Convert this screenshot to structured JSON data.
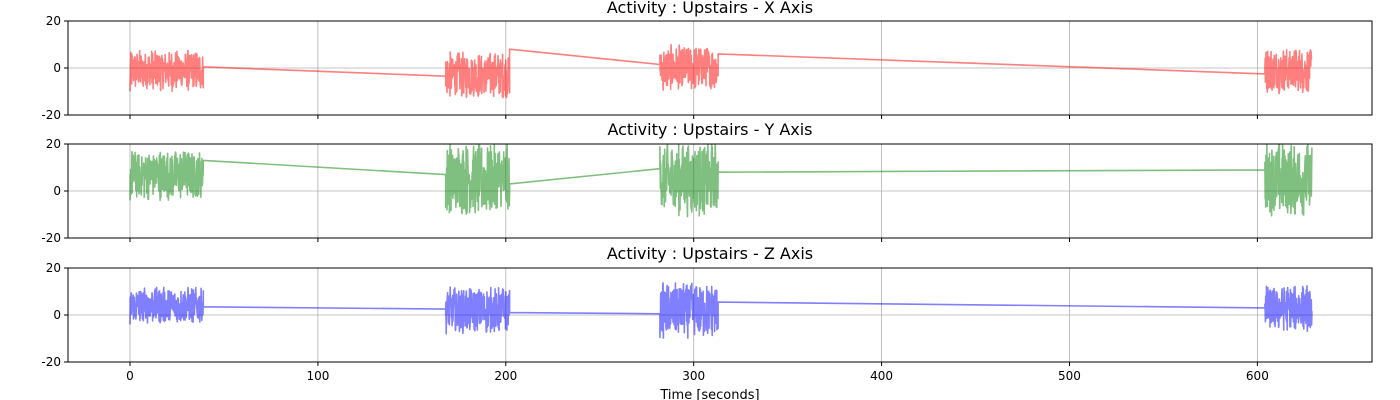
{
  "chart_data": [
    {
      "type": "line",
      "title": "Activity : Upstairs - X Axis",
      "series_color": "#ff0000",
      "opacity": 0.5,
      "xlim": [
        -33,
        661
      ],
      "ylim": [
        -20,
        20
      ],
      "yticks": [
        "-20",
        "0",
        "20"
      ],
      "xticks": [
        "0",
        "100",
        "200",
        "300",
        "400",
        "500",
        "600"
      ],
      "show_xtick_labels": false,
      "grid": true,
      "segments": [
        {
          "x_start": 0,
          "x_end": 39,
          "center": -1,
          "amplitude": 9
        },
        {
          "x_start": 168,
          "x_end": 202,
          "center": -3,
          "amplitude": 10
        },
        {
          "x_start": 282,
          "x_end": 313,
          "center": 0,
          "amplitude": 10
        },
        {
          "x_start": 604,
          "x_end": 629,
          "center": -1,
          "amplitude": 10
        }
      ],
      "connectors": [
        {
          "x": [
            39,
            168
          ],
          "y": [
            0.5,
            -3.5
          ]
        },
        {
          "x": [
            202,
            282
          ],
          "y": [
            8,
            1.5
          ]
        },
        {
          "x": [
            313,
            604
          ],
          "y": [
            6,
            -2.5
          ]
        }
      ]
    },
    {
      "type": "line",
      "title": "Activity : Upstairs - Y Axis",
      "series_color": "#008000",
      "opacity": 0.5,
      "xlim": [
        -33,
        661
      ],
      "ylim": [
        -20,
        20
      ],
      "yticks": [
        "-20",
        "0",
        "20"
      ],
      "xticks": [
        "0",
        "100",
        "200",
        "300",
        "400",
        "500",
        "600"
      ],
      "show_xtick_labels": false,
      "grid": true,
      "segments": [
        {
          "x_start": 0,
          "x_end": 39,
          "center": 7,
          "amplitude": 11
        },
        {
          "x_start": 168,
          "x_end": 202,
          "center": 5,
          "amplitude": 16
        },
        {
          "x_start": 282,
          "x_end": 313,
          "center": 5,
          "amplitude": 16
        },
        {
          "x_start": 604,
          "x_end": 629,
          "center": 5,
          "amplitude": 16
        }
      ],
      "connectors": [
        {
          "x": [
            39,
            168
          ],
          "y": [
            13,
            7
          ]
        },
        {
          "x": [
            202,
            282
          ],
          "y": [
            3,
            9.5
          ]
        },
        {
          "x": [
            313,
            604
          ],
          "y": [
            8,
            9
          ]
        }
      ]
    },
    {
      "type": "line",
      "title": "Activity : Upstairs - Z Axis",
      "series_color": "#0000ff",
      "opacity": 0.5,
      "xlim": [
        -33,
        661
      ],
      "ylim": [
        -20,
        20
      ],
      "yticks": [
        "-20",
        "0",
        "20"
      ],
      "xticks": [
        "0",
        "100",
        "200",
        "300",
        "400",
        "500",
        "600"
      ],
      "show_xtick_labels": true,
      "xlabel": "Time [seconds]",
      "grid": true,
      "segments": [
        {
          "x_start": 0,
          "x_end": 39,
          "center": 4,
          "amplitude": 8
        },
        {
          "x_start": 168,
          "x_end": 202,
          "center": 2,
          "amplitude": 10
        },
        {
          "x_start": 282,
          "x_end": 313,
          "center": 2,
          "amplitude": 12
        },
        {
          "x_start": 604,
          "x_end": 629,
          "center": 3,
          "amplitude": 10
        }
      ],
      "connectors": [
        {
          "x": [
            39,
            168
          ],
          "y": [
            3.5,
            2.5
          ]
        },
        {
          "x": [
            202,
            282
          ],
          "y": [
            1,
            0.5
          ]
        },
        {
          "x": [
            313,
            604
          ],
          "y": [
            5.5,
            3
          ]
        }
      ]
    }
  ]
}
